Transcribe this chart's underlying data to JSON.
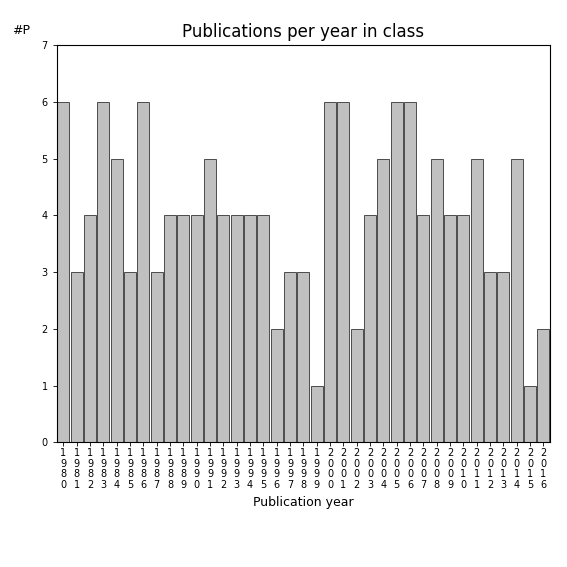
{
  "years": [
    "1980",
    "1981",
    "1982",
    "1983",
    "1984",
    "1985",
    "1986",
    "1987",
    "1988",
    "1989",
    "1990",
    "1991",
    "1992",
    "1993",
    "1994",
    "1995",
    "1996",
    "1997",
    "1998",
    "1999",
    "2000",
    "2001",
    "2002",
    "2003",
    "2004",
    "2005",
    "2006",
    "2007",
    "2008",
    "2009",
    "2010",
    "2011",
    "2012",
    "2013",
    "2014",
    "2015",
    "2016"
  ],
  "values": [
    6,
    3,
    4,
    6,
    5,
    3,
    6,
    3,
    4,
    4,
    4,
    5,
    4,
    4,
    4,
    4,
    2,
    3,
    3,
    1,
    6,
    6,
    2,
    4,
    5,
    6,
    6,
    4,
    5,
    4,
    4,
    5,
    3,
    3,
    5,
    1,
    2
  ],
  "bar_color": "#c0c0c0",
  "bar_edgecolor": "#333333",
  "title": "Publications per year in class",
  "ylabel": "#P",
  "xlabel": "Publication year",
  "ylim": [
    0,
    7
  ],
  "yticks": [
    0,
    1,
    2,
    3,
    4,
    5,
    6,
    7
  ],
  "title_fontsize": 12,
  "label_fontsize": 9,
  "tick_fontsize": 7,
  "bg_color": "#ffffff"
}
